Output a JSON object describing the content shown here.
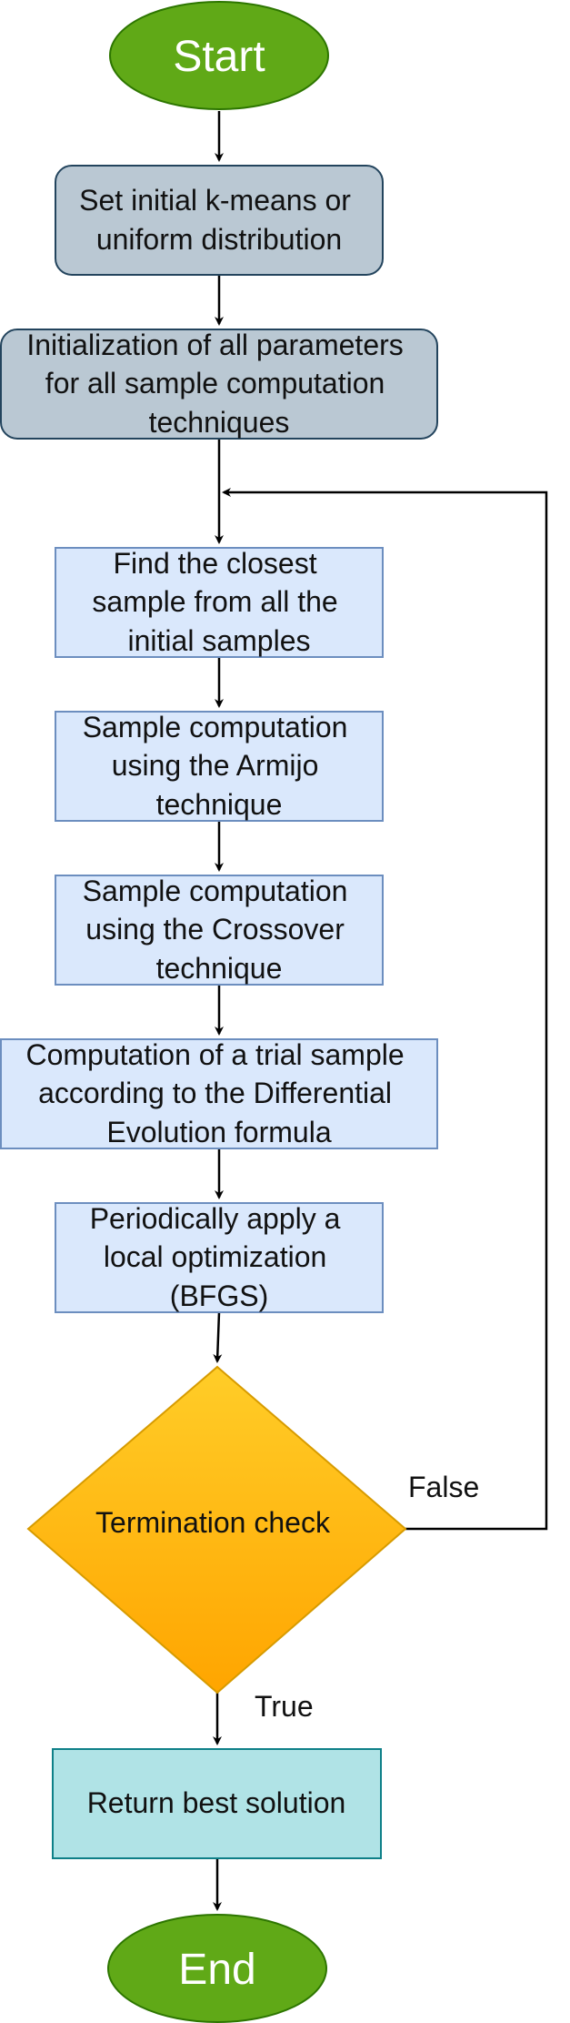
{
  "diagram": {
    "start": {
      "label": "Start",
      "fill": "#60a917",
      "stroke": "#2d7600"
    },
    "end": {
      "label": "End",
      "fill": "#60a917",
      "stroke": "#2d7600"
    },
    "init_kmeans": {
      "lines": [
        "Set initial k-means or",
        "uniform distribution"
      ],
      "fill": "#bac8d3",
      "stroke": "#23445d"
    },
    "init_params": {
      "lines": [
        "Initialization of all parameters",
        "for all sample computation",
        "techniques"
      ],
      "fill": "#bac8d3",
      "stroke": "#23445d"
    },
    "closest_sample": {
      "lines": [
        "Find the closest",
        "sample from all the",
        "initial samples"
      ],
      "fill": "#dae8fc",
      "stroke": "#6c8ebf"
    },
    "armijo": {
      "lines": [
        "Sample computation",
        "using the Armijo",
        "technique"
      ],
      "fill": "#dae8fc",
      "stroke": "#6c8ebf"
    },
    "crossover": {
      "lines": [
        "Sample computation",
        "using the Crossover",
        "technique"
      ],
      "fill": "#dae8fc",
      "stroke": "#6c8ebf"
    },
    "trial_sample": {
      "lines": [
        "Computation of a trial sample",
        "according to the Differential",
        "Evolution formula"
      ],
      "fill": "#dae8fc",
      "stroke": "#6c8ebf"
    },
    "local_opt": {
      "lines": [
        "Periodically apply a",
        "local optimization",
        "(BFGS)"
      ],
      "fill": "#dae8fc",
      "stroke": "#6c8ebf"
    },
    "termination": {
      "label": "Termination check",
      "fill_top": "#ffcd28",
      "fill_bottom": "#ffa500",
      "stroke": "#d79b00"
    },
    "return_best": {
      "label": "Return best solution",
      "fill": "#b0e3e6",
      "stroke": "#0e8088"
    },
    "edges": {
      "false_label": "False",
      "true_label": "True"
    },
    "arrow_color": "#000000"
  }
}
